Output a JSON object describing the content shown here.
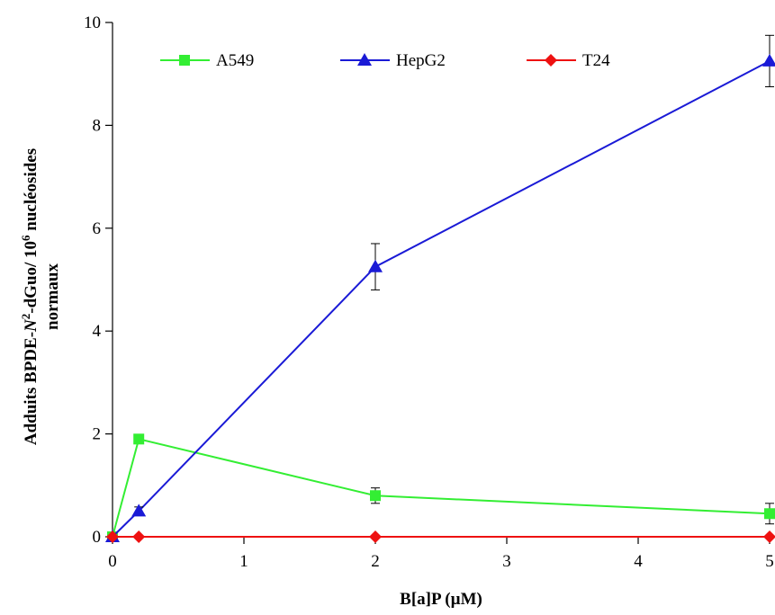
{
  "chart_data": {
    "type": "line",
    "xlabel": "B[a]P (µM)",
    "ylabel": {
      "line1_prefix": "Adduits BPDE-",
      "line1_italic": "N",
      "line1_sup": "2",
      "line1_mid": "-dGuo/ 10",
      "line1_sup2": "6",
      "line1_suffix": " nucléosides",
      "line2": "normaux"
    },
    "xlim": [
      0,
      5
    ],
    "ylim": [
      0,
      10
    ],
    "x_ticks": [
      "0",
      "1",
      "2",
      "3",
      "4",
      "5"
    ],
    "y_ticks": [
      "0",
      "2",
      "4",
      "6",
      "8",
      "10"
    ],
    "grid": false,
    "legend_position": "top",
    "series": [
      {
        "name": "A549",
        "color": "#33ee33",
        "marker": "square",
        "x": [
          0,
          0.2,
          2,
          5
        ],
        "y": [
          0,
          1.9,
          0.8,
          0.45
        ],
        "err": [
          0,
          0.08,
          0.15,
          0.2
        ]
      },
      {
        "name": "HepG2",
        "color": "#1a1ad6",
        "marker": "triangle",
        "x": [
          0,
          0.2,
          2,
          5
        ],
        "y": [
          0,
          0.5,
          5.25,
          9.25
        ],
        "err": [
          0,
          0.08,
          0.45,
          0.5
        ]
      },
      {
        "name": "T24",
        "color": "#ee1111",
        "marker": "diamond",
        "x": [
          0,
          0.2,
          2,
          5
        ],
        "y": [
          0,
          0,
          0,
          0
        ],
        "err": [
          0,
          0,
          0,
          0
        ]
      }
    ]
  }
}
